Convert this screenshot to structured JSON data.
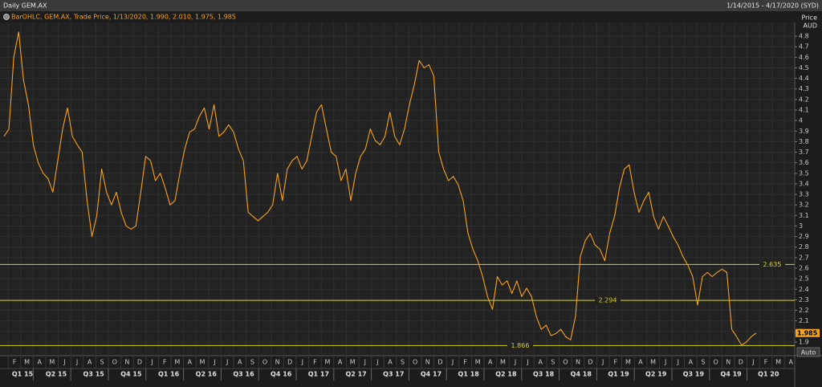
{
  "header": {
    "title": "Daily GEM.AX",
    "date_range": "1/14/2015 - 4/17/2020 (SYD)"
  },
  "chart_data": {
    "type": "line",
    "y_axis_label": "Price",
    "y_axis_unit": "AUD",
    "ylim": [
      1.77,
      4.93
    ],
    "yticks": [
      1.9,
      2,
      2.1,
      2.2,
      2.3,
      2.4,
      2.5,
      2.6,
      2.7,
      2.8,
      2.9,
      3,
      3.1,
      3.2,
      3.3,
      3.4,
      3.5,
      3.6,
      3.7,
      3.8,
      3.9,
      4,
      4.1,
      4.2,
      4.3,
      4.4,
      4.5,
      4.6,
      4.7,
      4.8
    ],
    "grid": true,
    "month_labels": [
      "F",
      "M",
      "A",
      "M",
      "J",
      "J",
      "A",
      "S",
      "O",
      "N",
      "D",
      "J",
      "F",
      "M",
      "A",
      "M",
      "J",
      "J",
      "A",
      "S",
      "O",
      "N",
      "D",
      "J",
      "F",
      "M",
      "A",
      "M",
      "J",
      "J",
      "A",
      "S",
      "O",
      "N",
      "D",
      "J",
      "F",
      "M",
      "A",
      "M",
      "J",
      "J",
      "A",
      "S",
      "O",
      "N",
      "D",
      "J",
      "F",
      "M",
      "A",
      "M",
      "J",
      "J",
      "A",
      "S",
      "O",
      "N",
      "D",
      "J",
      "F",
      "M",
      "A"
    ],
    "quarter_labels": [
      "Q1 15",
      "Q2 15",
      "Q3 15",
      "Q4 15",
      "Q1 16",
      "Q2 16",
      "Q3 16",
      "Q4 16",
      "Q1 17",
      "Q2 17",
      "Q3 17",
      "Q4 17",
      "Q1 18",
      "Q2 18",
      "Q3 18",
      "Q4 18",
      "Q1 19",
      "Q2 19",
      "Q3 19",
      "Q4 19",
      "Q1 20"
    ],
    "series": [
      {
        "name": "BarOHLC, GEM.AX, Trade Price, 1/13/2020, 1.990, 2.010, 1.975, 1.985",
        "color": "#f7a21b",
        "values": [
          3.85,
          3.92,
          4.6,
          4.84,
          4.38,
          4.15,
          3.77,
          3.6,
          3.5,
          3.45,
          3.32,
          3.62,
          3.92,
          4.12,
          3.85,
          3.77,
          3.7,
          3.24,
          2.9,
          3.1,
          3.54,
          3.32,
          3.2,
          3.32,
          3.13,
          3.0,
          2.97,
          3.0,
          3.32,
          3.66,
          3.62,
          3.43,
          3.5,
          3.36,
          3.2,
          3.24,
          3.5,
          3.73,
          3.89,
          3.92,
          4.04,
          4.12,
          3.92,
          4.15,
          3.85,
          3.89,
          3.96,
          3.89,
          3.73,
          3.62,
          3.13,
          3.09,
          3.05,
          3.09,
          3.13,
          3.2,
          3.5,
          3.24,
          3.54,
          3.62,
          3.66,
          3.54,
          3.62,
          3.85,
          4.08,
          4.15,
          3.92,
          3.7,
          3.66,
          3.43,
          3.54,
          3.24,
          3.5,
          3.66,
          3.73,
          3.92,
          3.81,
          3.77,
          3.85,
          4.08,
          3.85,
          3.77,
          3.92,
          4.15,
          4.34,
          4.57,
          4.5,
          4.53,
          4.42,
          3.7,
          3.54,
          3.43,
          3.47,
          3.39,
          3.24,
          2.93,
          2.78,
          2.67,
          2.52,
          2.33,
          2.21,
          2.52,
          2.44,
          2.48,
          2.36,
          2.48,
          2.33,
          2.41,
          2.33,
          2.14,
          2.02,
          2.06,
          1.96,
          1.98,
          2.02,
          1.95,
          1.92,
          2.14,
          2.71,
          2.86,
          2.93,
          2.82,
          2.78,
          2.67,
          2.93,
          3.09,
          3.36,
          3.54,
          3.58,
          3.32,
          3.13,
          3.24,
          3.32,
          3.09,
          2.97,
          3.09,
          3.0,
          2.9,
          2.82,
          2.71,
          2.63,
          2.52,
          2.25,
          2.52,
          2.56,
          2.52,
          2.56,
          2.59,
          2.56,
          2.02,
          1.95,
          1.87,
          1.9,
          1.95,
          1.985
        ]
      }
    ],
    "levels": [
      2.635,
      2.294,
      1.866
    ],
    "level_color": "#d2d21e",
    "last_price": 1.985,
    "button": "Auto"
  }
}
